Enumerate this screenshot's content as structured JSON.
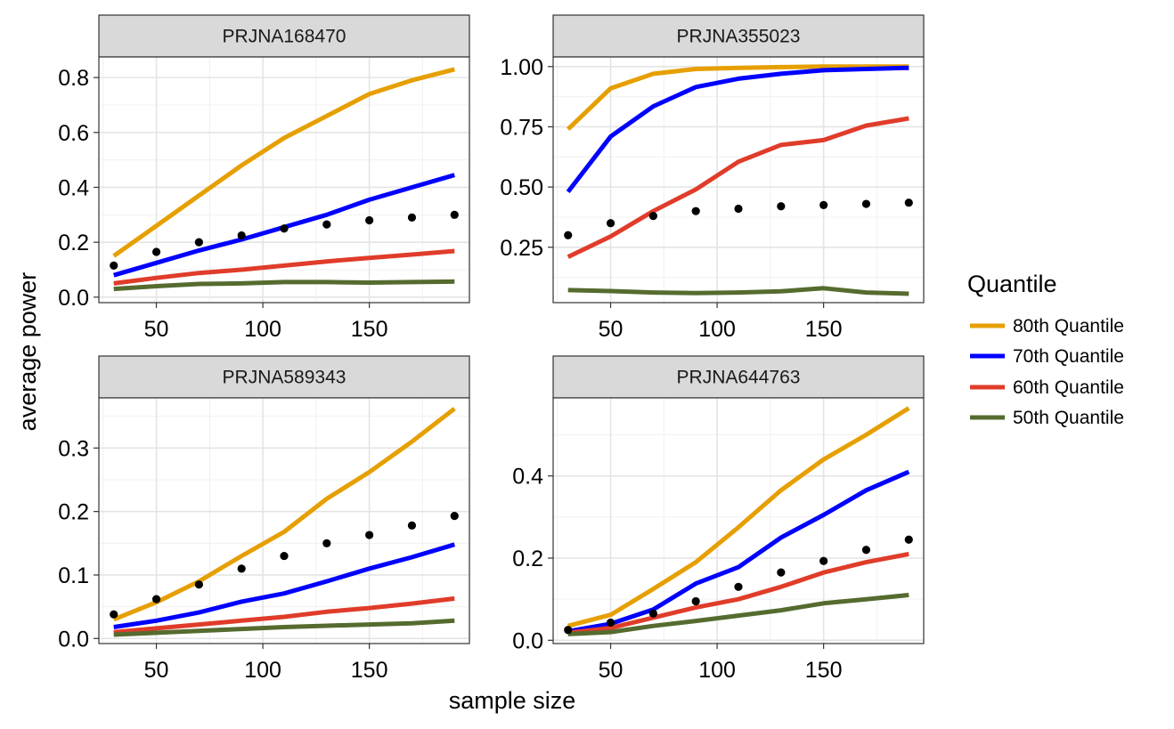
{
  "x_axis_title": "sample size",
  "y_axis_title": "average power",
  "legend": {
    "title": "Quantile",
    "items": [
      {
        "label": "80th Quantile",
        "color": "#E69F00"
      },
      {
        "label": "70th Quantile",
        "color": "#0000FF"
      },
      {
        "label": "60th Quantile",
        "color": "#E03C2A"
      },
      {
        "label": "50th Quantile",
        "color": "#556B2F"
      }
    ]
  },
  "chart_data": [
    {
      "type": "line",
      "title": "PRJNA168470",
      "x": [
        30,
        50,
        70,
        90,
        110,
        130,
        150,
        170,
        190
      ],
      "xlim": [
        23,
        197
      ],
      "xticks": [
        50,
        100,
        150
      ],
      "ylim": [
        -0.02,
        0.875
      ],
      "yticks": [
        0.0,
        0.2,
        0.4,
        0.6,
        0.8
      ],
      "ytick_labels": [
        "0.0",
        "0.2",
        "0.4",
        "0.6",
        "0.8"
      ],
      "series": [
        {
          "name": "80th Quantile",
          "values": [
            0.15,
            0.26,
            0.37,
            0.48,
            0.58,
            0.66,
            0.74,
            0.79,
            0.83
          ]
        },
        {
          "name": "70th Quantile",
          "values": [
            0.08,
            0.125,
            0.17,
            0.21,
            0.255,
            0.3,
            0.355,
            0.4,
            0.445
          ]
        },
        {
          "name": "60th Quantile",
          "values": [
            0.05,
            0.07,
            0.088,
            0.1,
            0.115,
            0.13,
            0.143,
            0.155,
            0.168
          ]
        },
        {
          "name": "50th Quantile",
          "values": [
            0.03,
            0.04,
            0.048,
            0.05,
            0.055,
            0.055,
            0.053,
            0.055,
            0.057
          ]
        }
      ],
      "points": [
        0.115,
        0.165,
        0.2,
        0.225,
        0.25,
        0.265,
        0.28,
        0.29,
        0.3
      ]
    },
    {
      "type": "line",
      "title": "PRJNA355023",
      "x": [
        30,
        50,
        70,
        90,
        110,
        130,
        150,
        170,
        190
      ],
      "xlim": [
        23,
        197
      ],
      "xticks": [
        50,
        100,
        150
      ],
      "ylim": [
        0.02,
        1.04
      ],
      "yticks": [
        0.25,
        0.5,
        0.75,
        1.0
      ],
      "ytick_labels": [
        "0.25",
        "0.50",
        "0.75",
        "1.00"
      ],
      "series": [
        {
          "name": "80th Quantile",
          "values": [
            0.74,
            0.91,
            0.97,
            0.99,
            0.995,
            0.998,
            1.0,
            1.0,
            1.0
          ]
        },
        {
          "name": "70th Quantile",
          "values": [
            0.48,
            0.71,
            0.835,
            0.915,
            0.95,
            0.97,
            0.985,
            0.99,
            0.995
          ]
        },
        {
          "name": "60th Quantile",
          "values": [
            0.21,
            0.295,
            0.4,
            0.49,
            0.605,
            0.675,
            0.695,
            0.755,
            0.785
          ]
        },
        {
          "name": "50th Quantile",
          "values": [
            0.072,
            0.068,
            0.062,
            0.06,
            0.062,
            0.067,
            0.08,
            0.062,
            0.057
          ]
        }
      ],
      "points": [
        0.3,
        0.35,
        0.38,
        0.4,
        0.41,
        0.42,
        0.425,
        0.43,
        0.435
      ]
    },
    {
      "type": "line",
      "title": "PRJNA589343",
      "x": [
        30,
        50,
        70,
        90,
        110,
        130,
        150,
        170,
        190
      ],
      "xlim": [
        23,
        197
      ],
      "xticks": [
        50,
        100,
        150
      ],
      "ylim": [
        -0.008,
        0.379
      ],
      "yticks": [
        0.0,
        0.1,
        0.2,
        0.3
      ],
      "ytick_labels": [
        "0.0",
        "0.1",
        "0.2",
        "0.3"
      ],
      "series": [
        {
          "name": "80th Quantile",
          "values": [
            0.03,
            0.057,
            0.09,
            0.13,
            0.168,
            0.22,
            0.262,
            0.31,
            0.362
          ]
        },
        {
          "name": "70th Quantile",
          "values": [
            0.018,
            0.028,
            0.041,
            0.058,
            0.071,
            0.09,
            0.11,
            0.128,
            0.148
          ]
        },
        {
          "name": "60th Quantile",
          "values": [
            0.01,
            0.016,
            0.022,
            0.028,
            0.034,
            0.042,
            0.048,
            0.055,
            0.063
          ]
        },
        {
          "name": "50th Quantile",
          "values": [
            0.006,
            0.009,
            0.012,
            0.015,
            0.018,
            0.02,
            0.022,
            0.024,
            0.028
          ]
        }
      ],
      "points": [
        0.038,
        0.062,
        0.085,
        0.11,
        0.13,
        0.15,
        0.163,
        0.178,
        0.193
      ]
    },
    {
      "type": "line",
      "title": "PRJNA644763",
      "x": [
        30,
        50,
        70,
        90,
        110,
        130,
        150,
        170,
        190
      ],
      "xlim": [
        23,
        197
      ],
      "xticks": [
        50,
        100,
        150
      ],
      "ylim": [
        -0.008,
        0.59
      ],
      "yticks": [
        0.0,
        0.2,
        0.4
      ],
      "ytick_labels": [
        "0.0",
        "0.2",
        "0.4"
      ],
      "series": [
        {
          "name": "80th Quantile",
          "values": [
            0.035,
            0.062,
            0.125,
            0.19,
            0.275,
            0.365,
            0.44,
            0.5,
            0.565
          ]
        },
        {
          "name": "70th Quantile",
          "values": [
            0.022,
            0.04,
            0.075,
            0.138,
            0.178,
            0.25,
            0.305,
            0.365,
            0.41
          ]
        },
        {
          "name": "60th Quantile",
          "values": [
            0.018,
            0.03,
            0.055,
            0.08,
            0.1,
            0.13,
            0.165,
            0.19,
            0.21
          ]
        },
        {
          "name": "50th Quantile",
          "values": [
            0.015,
            0.02,
            0.035,
            0.047,
            0.06,
            0.073,
            0.09,
            0.1,
            0.11
          ]
        }
      ],
      "points": [
        0.025,
        0.043,
        0.065,
        0.095,
        0.13,
        0.165,
        0.193,
        0.22,
        0.245
      ]
    }
  ]
}
